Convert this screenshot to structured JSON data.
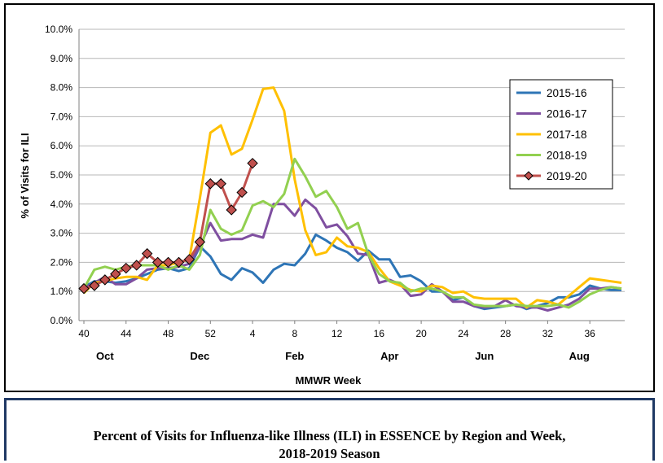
{
  "chart_data": {
    "type": "line",
    "xlabel": "MMWR Week",
    "ylabel": "% of Visits for ILI",
    "ylim": [
      0,
      10
    ],
    "yticks": [
      "0.0%",
      "1.0%",
      "2.0%",
      "3.0%",
      "4.0%",
      "5.0%",
      "6.0%",
      "7.0%",
      "8.0%",
      "9.0%",
      "10.0%"
    ],
    "xtick_labels": [
      "40",
      "44",
      "48",
      "52",
      "4",
      "8",
      "12",
      "16",
      "20",
      "24",
      "28",
      "32",
      "36"
    ],
    "month_labels": [
      "Oct",
      "Dec",
      "Feb",
      "Apr",
      "Jun",
      "Aug"
    ],
    "grid": "horizontal",
    "legend_position": "right",
    "x_weeks": [
      40,
      41,
      42,
      43,
      44,
      45,
      46,
      47,
      48,
      49,
      50,
      51,
      52,
      1,
      2,
      3,
      4,
      5,
      6,
      7,
      8,
      9,
      10,
      11,
      12,
      13,
      14,
      15,
      16,
      17,
      18,
      19,
      20,
      21,
      22,
      23,
      24,
      25,
      26,
      27,
      28,
      29,
      30,
      31,
      32,
      33,
      34,
      35,
      36,
      37,
      38,
      39
    ],
    "series": [
      {
        "name": "2015-16",
        "color": "#2e75b6",
        "marker": "none",
        "values": [
          1.15,
          1.35,
          1.35,
          1.3,
          1.35,
          1.45,
          1.6,
          1.75,
          1.8,
          1.7,
          1.8,
          2.55,
          2.2,
          1.6,
          1.4,
          1.8,
          1.65,
          1.3,
          1.75,
          1.95,
          1.9,
          2.3,
          2.95,
          2.75,
          2.5,
          2.35,
          2.05,
          2.4,
          2.1,
          2.1,
          1.5,
          1.55,
          1.35,
          1.0,
          1.0,
          0.7,
          0.8,
          0.5,
          0.4,
          0.45,
          0.5,
          0.55,
          0.4,
          0.5,
          0.6,
          0.8,
          0.8,
          0.9,
          1.2,
          1.1,
          1.05,
          1.05
        ]
      },
      {
        "name": "2016-17",
        "color": "#7f4fa0",
        "marker": "none",
        "values": [
          1.1,
          1.3,
          1.5,
          1.25,
          1.25,
          1.45,
          1.75,
          1.8,
          1.8,
          1.85,
          1.95,
          2.55,
          3.35,
          2.75,
          2.8,
          2.8,
          2.95,
          2.85,
          4.0,
          4.0,
          3.6,
          4.15,
          3.85,
          3.2,
          3.3,
          2.9,
          2.3,
          2.25,
          1.3,
          1.4,
          1.25,
          0.85,
          0.9,
          1.25,
          1.0,
          0.65,
          0.65,
          0.5,
          0.45,
          0.5,
          0.7,
          0.5,
          0.45,
          0.45,
          0.35,
          0.45,
          0.55,
          0.75,
          1.1,
          1.1,
          1.15,
          1.1
        ]
      },
      {
        "name": "2017-18",
        "color": "#ffc000",
        "marker": "none",
        "values": [
          0.95,
          1.3,
          1.35,
          1.45,
          1.5,
          1.5,
          1.4,
          1.9,
          1.9,
          2.0,
          2.1,
          4.2,
          6.45,
          6.7,
          5.7,
          5.9,
          6.9,
          7.95,
          8.0,
          7.2,
          4.85,
          3.1,
          2.25,
          2.35,
          2.85,
          2.55,
          2.5,
          2.35,
          1.8,
          1.35,
          1.2,
          1.05,
          1.0,
          1.2,
          1.15,
          0.95,
          1.0,
          0.8,
          0.75,
          0.75,
          0.75,
          0.75,
          0.45,
          0.7,
          0.65,
          0.55,
          0.85,
          1.15,
          1.45,
          1.4,
          1.35,
          1.3
        ]
      },
      {
        "name": "2018-19",
        "color": "#92d050",
        "marker": "none",
        "values": [
          1.1,
          1.75,
          1.85,
          1.75,
          1.85,
          1.9,
          1.9,
          1.9,
          1.75,
          1.9,
          1.75,
          2.25,
          3.8,
          3.15,
          2.95,
          3.1,
          3.95,
          4.1,
          3.9,
          4.35,
          5.55,
          4.95,
          4.25,
          4.45,
          3.9,
          3.15,
          3.35,
          2.25,
          1.6,
          1.35,
          1.3,
          1.0,
          1.1,
          1.1,
          1.0,
          0.8,
          0.8,
          0.55,
          0.5,
          0.5,
          0.5,
          0.55,
          0.5,
          0.5,
          0.5,
          0.55,
          0.45,
          0.65,
          0.9,
          1.05,
          1.15,
          1.1
        ]
      },
      {
        "name": "2019-20",
        "color": "#c0504d",
        "marker": "diamond",
        "values": [
          1.1,
          1.2,
          1.4,
          1.6,
          1.8,
          1.9,
          2.3,
          2.0,
          2.0,
          2.0,
          2.1,
          2.7,
          4.7,
          4.7,
          3.8,
          4.4,
          5.4
        ]
      }
    ]
  },
  "caption": {
    "line1": "Percent of Visits for Influenza-like Illness (ILI) in ESSENCE by Region and Week,",
    "line2": "2018-2019 Season"
  }
}
